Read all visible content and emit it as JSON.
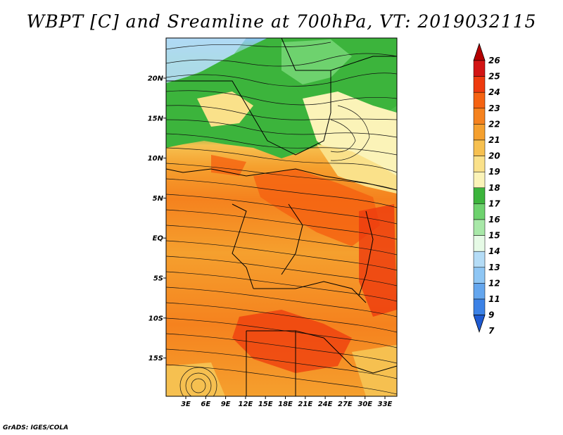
{
  "title": "WBPT [C] and Sreamline at 700hPa, VT: 2019032115",
  "credit": "GrADS: IGES/COLA",
  "map": {
    "variable": "Wet-bulb potential temperature (C)",
    "overlay": "Streamlines",
    "level": "700hPa",
    "lon_labels": [
      "3E",
      "6E",
      "9E",
      "12E",
      "15E",
      "18E",
      "21E",
      "24E",
      "27E",
      "30E",
      "33E"
    ],
    "lat_labels": [
      "20N",
      "15N",
      "10N",
      "5N",
      "EQ",
      "5S",
      "10S",
      "15S"
    ]
  },
  "colorbar": {
    "labels": [
      "26",
      "25",
      "24",
      "23",
      "22",
      "21",
      "20",
      "19",
      "18",
      "17",
      "16",
      "15",
      "14",
      "13",
      "12",
      "11",
      "9",
      "7"
    ],
    "colors": [
      "#b40000",
      "#d21414",
      "#ee3a0e",
      "#f56312",
      "#f5821e",
      "#f5a02e",
      "#f6c050",
      "#fae18a",
      "#fbf3b8",
      "#3cb43c",
      "#6ed26e",
      "#a8e8a8",
      "#e6fae6",
      "#b4dcf6",
      "#8ec6f4",
      "#64a6ee",
      "#3c82e6",
      "#1e5ad2"
    ]
  }
}
